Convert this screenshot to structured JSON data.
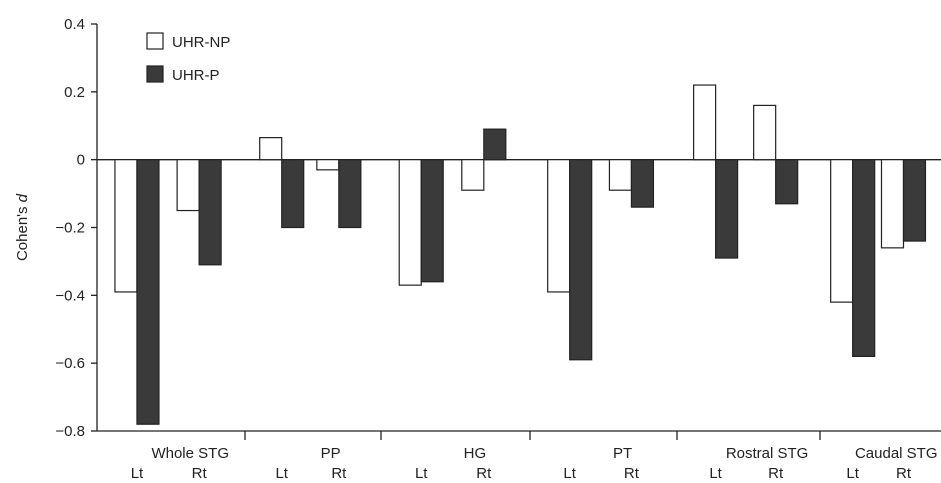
{
  "chart_data": {
    "type": "bar",
    "ylabel_prefix": "Cohen's ",
    "ylabel_italic": "d",
    "ylim": [
      -0.8,
      0.4
    ],
    "yticks": [
      {
        "value": 0.4,
        "label": "0.4"
      },
      {
        "value": 0.2,
        "label": "0.2"
      },
      {
        "value": 0.0,
        "label": "0"
      },
      {
        "value": -0.2,
        "label": "−0.2"
      },
      {
        "value": -0.4,
        "label": "−0.4"
      },
      {
        "value": -0.6,
        "label": "−0.6"
      },
      {
        "value": -0.8,
        "label": "−0.8"
      }
    ],
    "groups": [
      "Whole STG",
      "PP",
      "HG",
      "PT",
      "Rostral STG",
      "Caudal STG"
    ],
    "sides": [
      "Lt",
      "Rt"
    ],
    "categories": [
      "Whole STG Lt",
      "Whole STG Rt",
      "PP Lt",
      "PP Rt",
      "HG Lt",
      "HG Rt",
      "PT Lt",
      "PT Rt",
      "Rostral STG Lt",
      "Rostral STG Rt",
      "Caudal STG Lt",
      "Caudal STG Rt"
    ],
    "series": [
      {
        "name": "UHR-NP",
        "color": "#ffffff",
        "values": [
          -0.39,
          -0.15,
          0.065,
          -0.03,
          -0.37,
          -0.09,
          -0.39,
          -0.09,
          0.22,
          0.16,
          -0.42,
          -0.26
        ]
      },
      {
        "name": "UHR-P",
        "color": "#3a3a3a",
        "values": [
          -0.78,
          -0.31,
          -0.2,
          -0.2,
          -0.36,
          0.09,
          -0.59,
          -0.14,
          -0.29,
          -0.13,
          -0.58,
          -0.24
        ]
      }
    ],
    "legend_position": "top-left",
    "grid": false
  }
}
